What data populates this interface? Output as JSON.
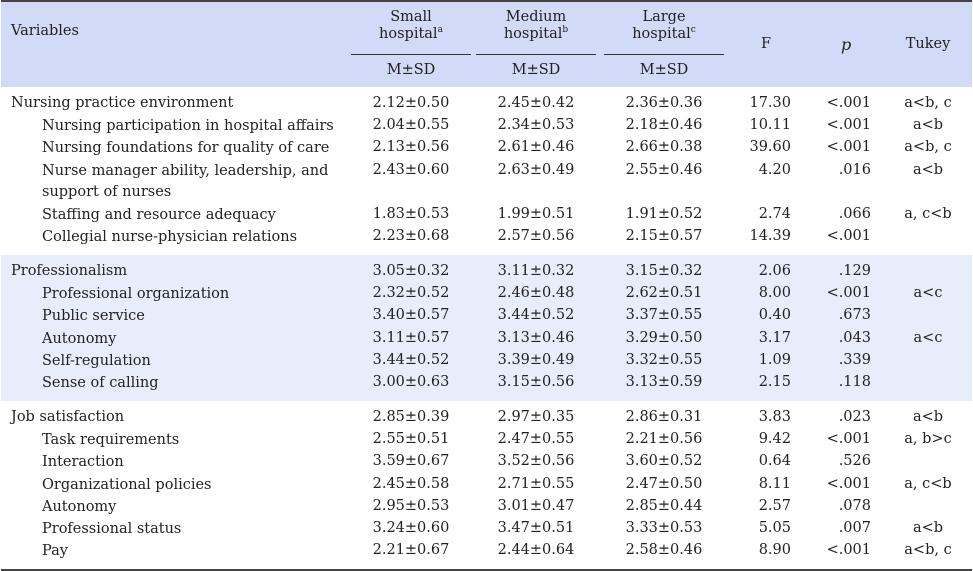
{
  "header": {
    "variables": "Variables",
    "small": "Small hospital",
    "small_name": "Small",
    "small_word": "hospital",
    "small_sup": "a",
    "medium_name": "Medium",
    "medium_word": "hospital",
    "medium_sup": "b",
    "large_name": "Large",
    "large_word": "hospital",
    "large_sup": "c",
    "msd": "M±SD",
    "f": "F",
    "p": "p",
    "tukey": "Tukey"
  },
  "sections": [
    {
      "rows": [
        {
          "label": "Nursing practice environment",
          "sub": false,
          "small": "2.12±0.50",
          "medium": "2.45±0.42",
          "large": "2.36±0.36",
          "f": "17.30",
          "p": "<.001",
          "tukey": "a<b, c"
        },
        {
          "label": "Nursing participation in hospital affairs",
          "sub": true,
          "small": "2.04±0.55",
          "medium": "2.34±0.53",
          "large": "2.18±0.46",
          "f": "10.11",
          "p": "<.001",
          "tukey": "a<b"
        },
        {
          "label": "Nursing foundations for quality of care",
          "sub": true,
          "small": "2.13±0.56",
          "medium": "2.61±0.46",
          "large": "2.66±0.38",
          "f": "39.60",
          "p": "<.001",
          "tukey": "a<b, c"
        },
        {
          "label": "Nurse manager ability, leadership, and support of nurses",
          "sub": true,
          "tall": true,
          "small": "2.43±0.60",
          "medium": "2.63±0.49",
          "large": "2.55±0.46",
          "f": "4.20",
          "p": ".016",
          "tukey": "a<b"
        },
        {
          "label": "Staffing and resource adequacy",
          "sub": true,
          "small": "1.83±0.53",
          "medium": "1.99±0.51",
          "large": "1.91±0.52",
          "f": "2.74",
          "p": ".066",
          "tukey": "a, c<b"
        },
        {
          "label": "Collegial nurse-physician relations",
          "sub": true,
          "small": "2.23±0.68",
          "medium": "2.57±0.56",
          "large": "2.15±0.57",
          "f": "14.39",
          "p": "<.001",
          "tukey": ""
        }
      ]
    },
    {
      "rows": [
        {
          "label": "Professionalism",
          "sub": false,
          "small": "3.05±0.32",
          "medium": "3.11±0.32",
          "large": "3.15±0.32",
          "f": "2.06",
          "p": ".129",
          "tukey": ""
        },
        {
          "label": "Professional organization",
          "sub": true,
          "small": "2.32±0.52",
          "medium": "2.46±0.48",
          "large": "2.62±0.51",
          "f": "8.00",
          "p": "<.001",
          "tukey": "a<c"
        },
        {
          "label": "Public service",
          "sub": true,
          "small": "3.40±0.57",
          "medium": "3.44±0.52",
          "large": "3.37±0.55",
          "f": "0.40",
          "p": ".673",
          "tukey": ""
        },
        {
          "label": "Autonomy",
          "sub": true,
          "small": "3.11±0.57",
          "medium": "3.13±0.46",
          "large": "3.29±0.50",
          "f": "3.17",
          "p": ".043",
          "tukey": "a<c"
        },
        {
          "label": "Self-regulation",
          "sub": true,
          "small": "3.44±0.52",
          "medium": "3.39±0.49",
          "large": "3.32±0.55",
          "f": "1.09",
          "p": ".339",
          "tukey": ""
        },
        {
          "label": "Sense of calling",
          "sub": true,
          "small": "3.00±0.63",
          "medium": "3.15±0.56",
          "large": "3.13±0.59",
          "f": "2.15",
          "p": ".118",
          "tukey": ""
        }
      ]
    },
    {
      "rows": [
        {
          "label": "Job satisfaction",
          "sub": false,
          "small": "2.85±0.39",
          "medium": "2.97±0.35",
          "large": "2.86±0.31",
          "f": "3.83",
          "p": ".023",
          "tukey": "a<b"
        },
        {
          "label": "Task requirements",
          "sub": true,
          "small": "2.55±0.51",
          "medium": "2.47±0.55",
          "large": "2.21±0.56",
          "f": "9.42",
          "p": "<.001",
          "tukey": "a, b>c"
        },
        {
          "label": "Interaction",
          "sub": true,
          "small": "3.59±0.67",
          "medium": "3.52±0.56",
          "large": "3.60±0.52",
          "f": "0.64",
          "p": ".526",
          "tukey": ""
        },
        {
          "label": "Organizational policies",
          "sub": true,
          "small": "2.45±0.58",
          "medium": "2.71±0.55",
          "large": "2.47±0.50",
          "f": "8.11",
          "p": "<.001",
          "tukey": "a, c<b"
        },
        {
          "label": "Autonomy",
          "sub": true,
          "small": "2.95±0.53",
          "medium": "3.01±0.47",
          "large": "2.85±0.44",
          "f": "2.57",
          "p": ".078",
          "tukey": ""
        },
        {
          "label": "Professional status",
          "sub": true,
          "small": "3.24±0.60",
          "medium": "3.47±0.51",
          "large": "3.33±0.53",
          "f": "5.05",
          "p": ".007",
          "tukey": "a<b"
        },
        {
          "label": "Pay",
          "sub": true,
          "small": "2.21±0.67",
          "medium": "2.44±0.64",
          "large": "2.58±0.46",
          "f": "8.90",
          "p": "<.001",
          "tukey": "a<b, c"
        }
      ]
    }
  ]
}
